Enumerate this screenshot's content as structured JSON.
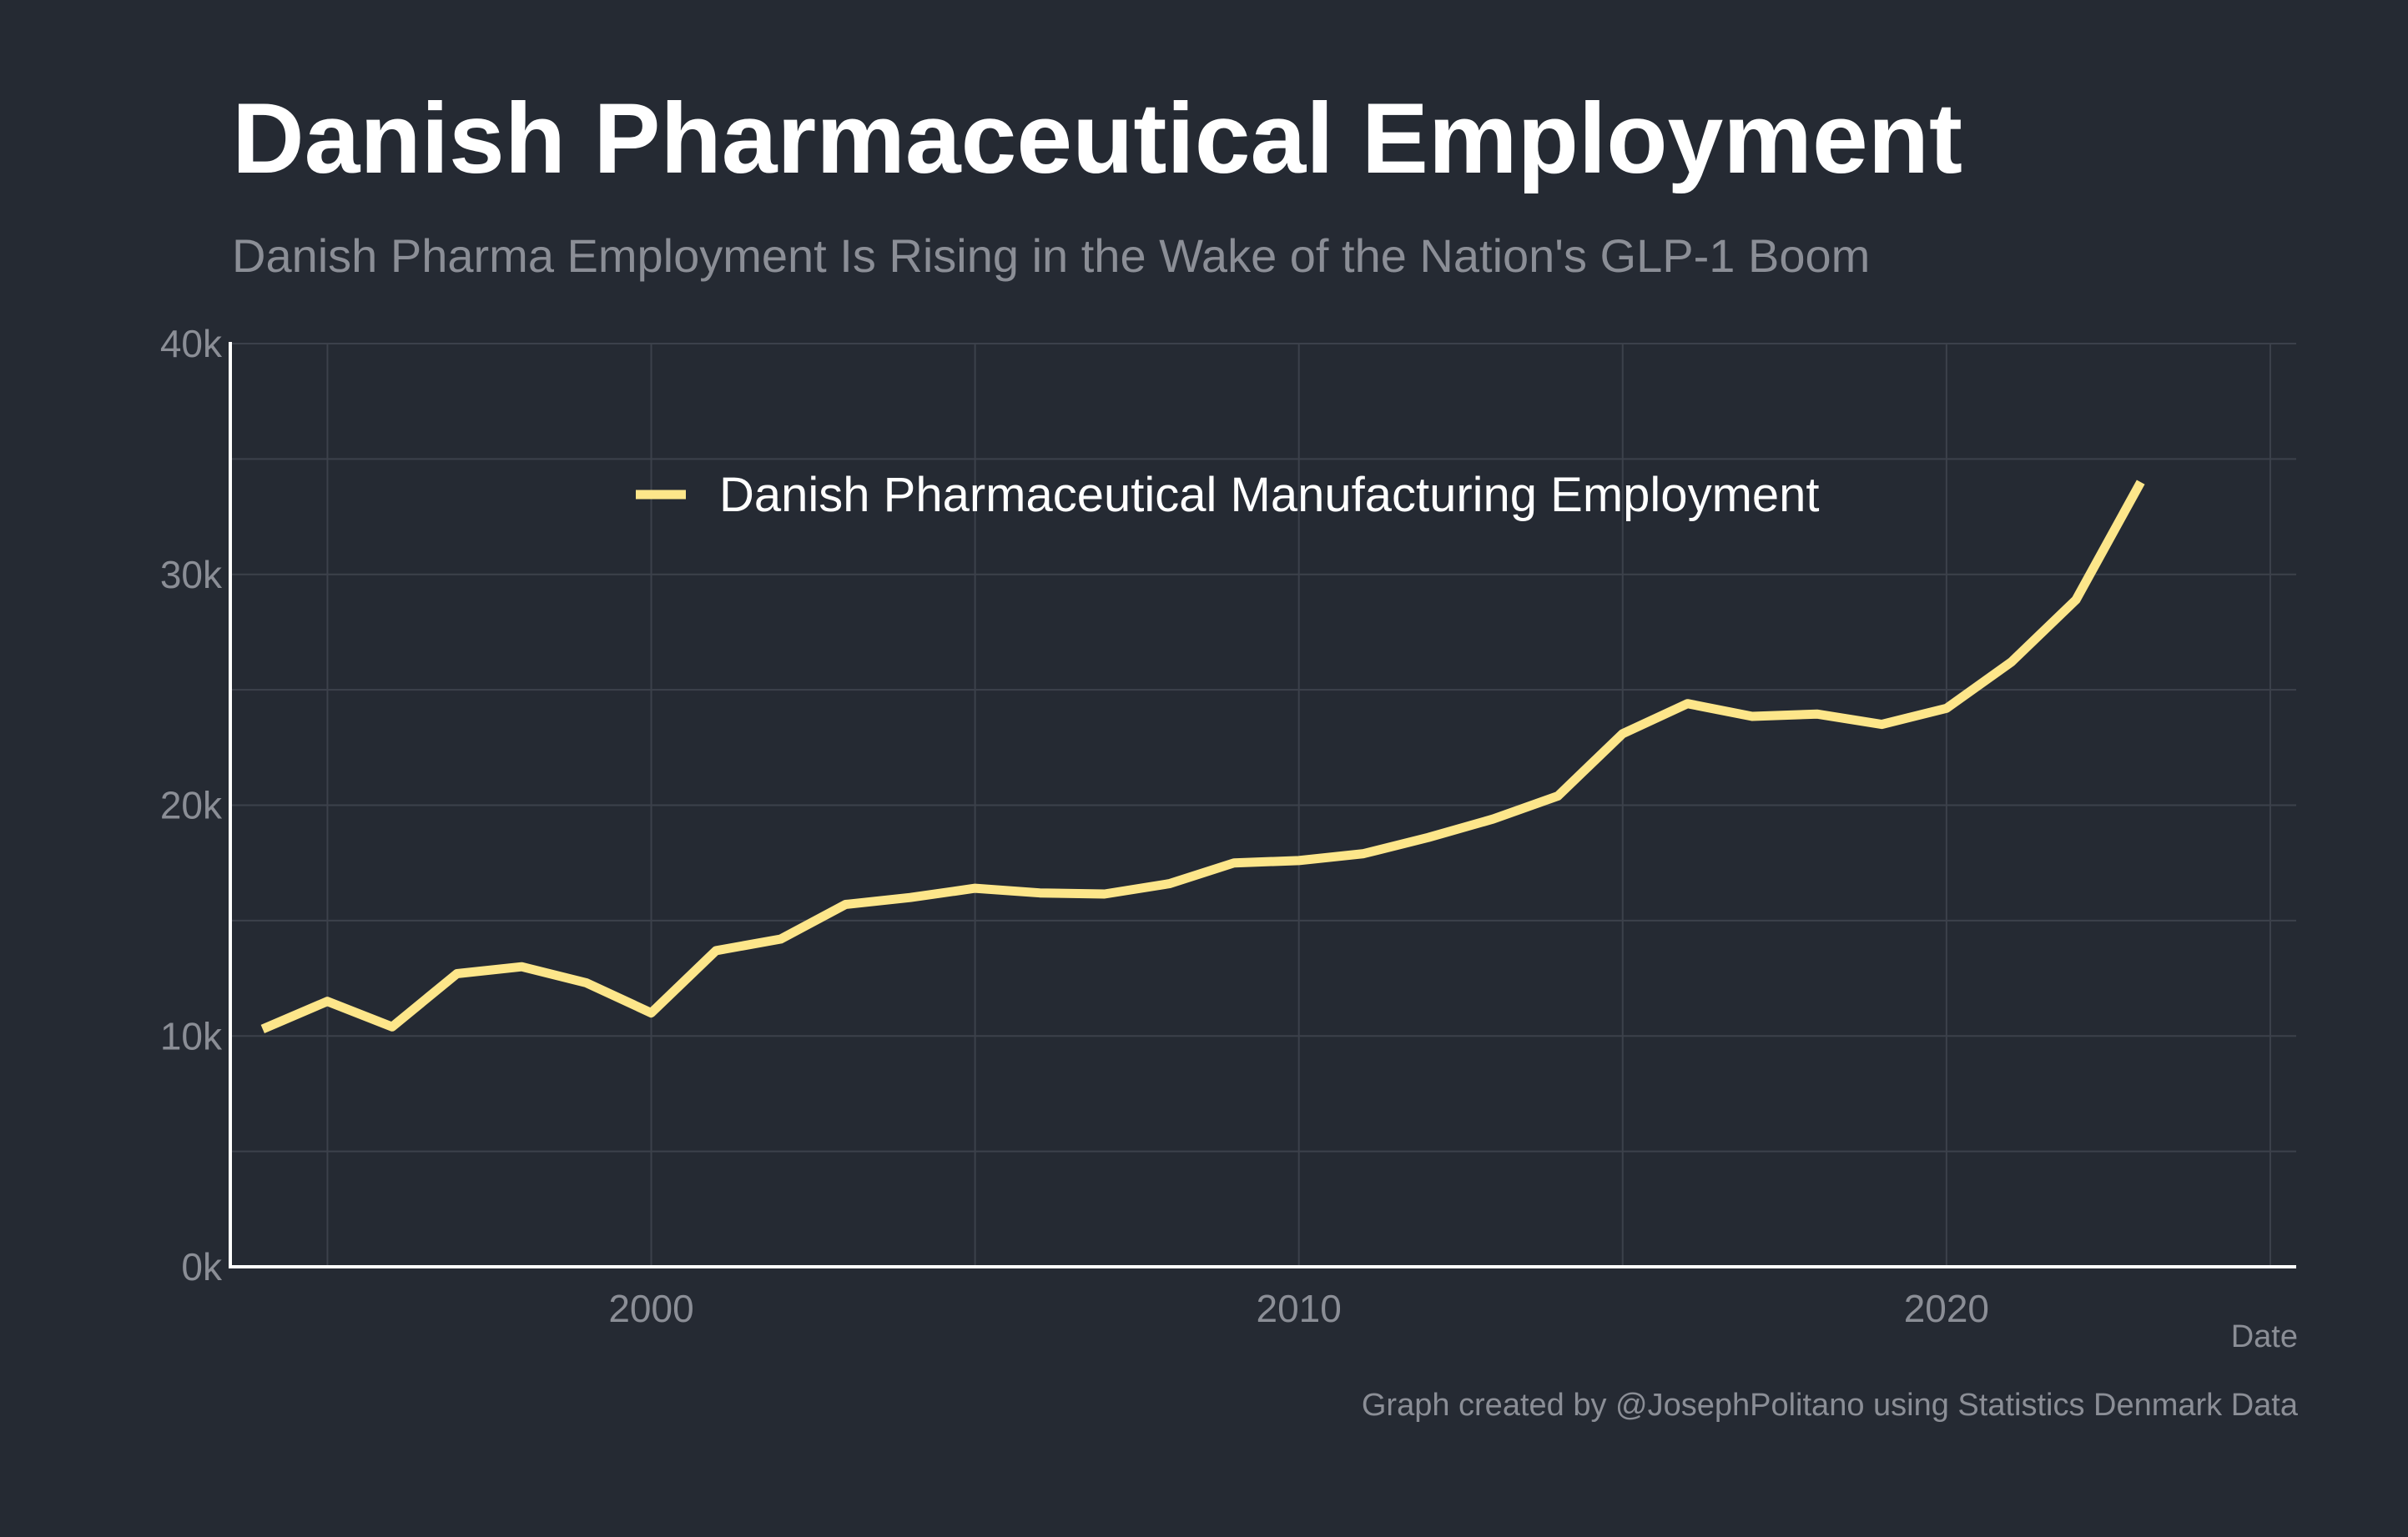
{
  "chart_data": {
    "type": "line",
    "title": "Danish Pharmaceutical Employment",
    "subtitle": "Danish Pharma Employment Is Rising in the Wake of the Nation's GLP-1 Boom",
    "xlabel": "Date",
    "ylabel": "",
    "caption": "Graph created by @JosephPolitano using Statistics Denmark Data",
    "xlim": [
      1993.5,
      2025.4
    ],
    "ylim": [
      0,
      40000
    ],
    "x_ticks": [
      2000,
      2010,
      2020
    ],
    "x_tick_labels": [
      "2000",
      "2010",
      "2020"
    ],
    "y_ticks": [
      0,
      10000,
      20000,
      30000,
      40000
    ],
    "y_tick_labels": [
      "0k",
      "10k",
      "20k",
      "30k",
      "40k"
    ],
    "grid": true,
    "legend_position": "top-center",
    "series": [
      {
        "name": "Danish Pharmaceutical Manufacturing Employment",
        "color": "#fde68a",
        "x": [
          1994,
          1995,
          1996,
          1997,
          1998,
          1999,
          2000,
          2001,
          2002,
          2003,
          2004,
          2005,
          2006,
          2007,
          2008,
          2009,
          2010,
          2011,
          2012,
          2013,
          2014,
          2015,
          2016,
          2017,
          2018,
          2019,
          2020,
          2021,
          2022,
          2023
        ],
        "values": [
          10300,
          11500,
          10400,
          12700,
          13000,
          12300,
          11000,
          13700,
          14200,
          15700,
          16000,
          16400,
          16200,
          16150,
          16600,
          17500,
          17600,
          17900,
          18600,
          19400,
          20400,
          23100,
          24400,
          23850,
          23950,
          23500,
          24200,
          26200,
          28900,
          34000
        ]
      }
    ]
  },
  "colors": {
    "background": "#252a33",
    "grid": "#3c414b",
    "axis": "#ffffff",
    "tick_text": "#8b8e96",
    "title": "#ffffff",
    "legend_text": "#ffffff"
  }
}
